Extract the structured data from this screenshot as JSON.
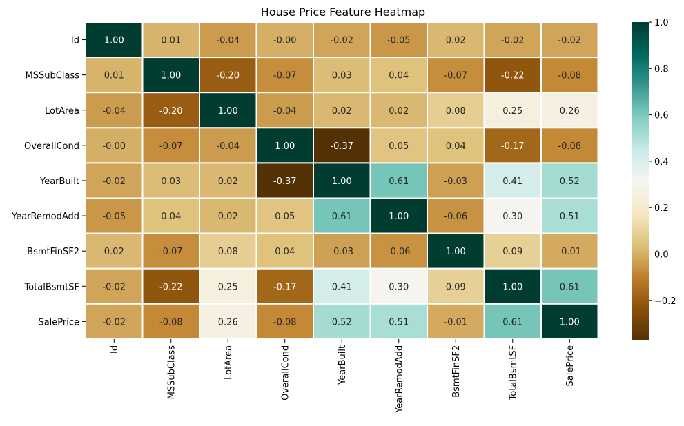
{
  "chart_data": {
    "type": "heatmap",
    "title": "House Price Feature Heatmap",
    "x_labels": [
      "Id",
      "MSSubClass",
      "LotArea",
      "OverallCond",
      "YearBuilt",
      "YearRemodAdd",
      "BsmtFinSF2",
      "TotalBsmtSF",
      "SalePrice"
    ],
    "y_labels": [
      "Id",
      "MSSubClass",
      "LotArea",
      "OverallCond",
      "YearBuilt",
      "YearRemodAdd",
      "BsmtFinSF2",
      "TotalBsmtSF",
      "SalePrice"
    ],
    "values": [
      [
        1.0,
        0.01,
        -0.04,
        -0.0,
        -0.02,
        -0.05,
        0.02,
        -0.02,
        -0.02
      ],
      [
        0.01,
        1.0,
        -0.2,
        -0.07,
        0.03,
        0.04,
        -0.07,
        -0.22,
        -0.08
      ],
      [
        -0.04,
        -0.2,
        1.0,
        -0.04,
        0.02,
        0.02,
        0.08,
        0.25,
        0.26
      ],
      [
        -0.0,
        -0.07,
        -0.04,
        1.0,
        -0.37,
        0.05,
        0.04,
        -0.17,
        -0.08
      ],
      [
        -0.02,
        0.03,
        0.02,
        -0.37,
        1.0,
        0.61,
        -0.03,
        0.41,
        0.52
      ],
      [
        -0.05,
        0.04,
        0.02,
        0.05,
        0.61,
        1.0,
        -0.06,
        0.3,
        0.51
      ],
      [
        0.02,
        -0.07,
        0.08,
        0.04,
        -0.03,
        -0.06,
        1.0,
        0.09,
        -0.01
      ],
      [
        -0.02,
        -0.22,
        0.25,
        -0.17,
        0.41,
        0.3,
        0.09,
        1.0,
        0.61
      ],
      [
        -0.02,
        -0.08,
        0.26,
        -0.08,
        0.52,
        0.51,
        -0.01,
        0.61,
        1.0
      ]
    ],
    "value_labels": [
      [
        "1.00",
        "0.01",
        "-0.04",
        "-0.00",
        "-0.02",
        "-0.05",
        "0.02",
        "-0.02",
        "-0.02"
      ],
      [
        "0.01",
        "1.00",
        "-0.20",
        "-0.07",
        "0.03",
        "0.04",
        "-0.07",
        "-0.22",
        "-0.08"
      ],
      [
        "-0.04",
        "-0.20",
        "1.00",
        "-0.04",
        "0.02",
        "0.02",
        "0.08",
        "0.25",
        "0.26"
      ],
      [
        "-0.00",
        "-0.07",
        "-0.04",
        "1.00",
        "-0.37",
        "0.05",
        "0.04",
        "-0.17",
        "-0.08"
      ],
      [
        "-0.02",
        "0.03",
        "0.02",
        "-0.37",
        "1.00",
        "0.61",
        "-0.03",
        "0.41",
        "0.52"
      ],
      [
        "-0.05",
        "0.04",
        "0.02",
        "0.05",
        "0.61",
        "1.00",
        "-0.06",
        "0.30",
        "0.51"
      ],
      [
        "0.02",
        "-0.07",
        "0.08",
        "0.04",
        "-0.03",
        "-0.06",
        "1.00",
        "0.09",
        "-0.01"
      ],
      [
        "-0.02",
        "-0.22",
        "0.25",
        "-0.17",
        "0.41",
        "0.30",
        "0.09",
        "1.00",
        "0.61"
      ],
      [
        "-0.02",
        "-0.08",
        "0.26",
        "-0.08",
        "0.52",
        "0.51",
        "-0.01",
        "0.61",
        "1.00"
      ]
    ],
    "colormap": "BrBG",
    "color_range": [
      -0.37,
      1.0
    ],
    "colorbar_ticks": [
      1.0,
      0.8,
      0.6,
      0.4,
      0.2,
      0.0,
      -0.2
    ],
    "colorbar_tick_labels": [
      "1.0",
      "0.8",
      "0.6",
      "0.4",
      "0.2",
      "0.0",
      "−0.2"
    ],
    "cell_border_color": "#ffffff",
    "legend_position": "right"
  }
}
